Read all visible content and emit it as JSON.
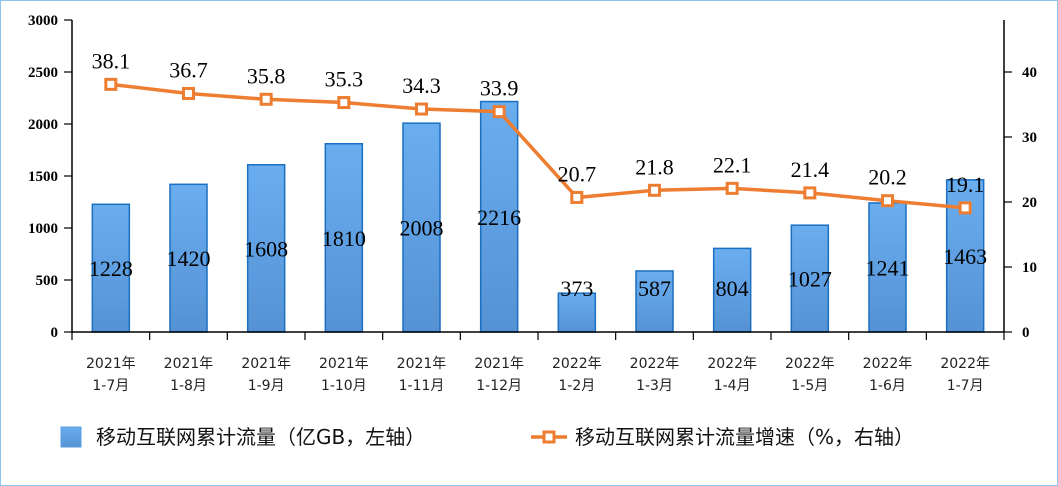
{
  "chart_data": {
    "type": "bar+line",
    "categories": [
      [
        "2021年",
        "1-7月"
      ],
      [
        "2021年",
        "1-8月"
      ],
      [
        "2021年",
        "1-9月"
      ],
      [
        "2021年",
        "1-10月"
      ],
      [
        "2021年",
        "1-11月"
      ],
      [
        "2021年",
        "1-12月"
      ],
      [
        "2022年",
        "1-2月"
      ],
      [
        "2022年",
        "1-3月"
      ],
      [
        "2022年",
        "1-4月"
      ],
      [
        "2022年",
        "1-5月"
      ],
      [
        "2022年",
        "1-6月"
      ],
      [
        "2022年",
        "1-7月"
      ]
    ],
    "series": [
      {
        "name": "移动互联网累计流量（亿GB，左轴）",
        "type": "bar",
        "axis": "left",
        "color": "#5b9ee0",
        "values": [
          1228,
          1420,
          1608,
          1810,
          2008,
          2216,
          373,
          587,
          804,
          1027,
          1241,
          1463
        ]
      },
      {
        "name": "移动互联网累计流量增速（%，右轴）",
        "type": "line",
        "axis": "right",
        "color": "#ed7d31",
        "values": [
          38.1,
          36.7,
          35.8,
          35.3,
          34.3,
          33.9,
          20.7,
          21.8,
          22.1,
          21.4,
          20.2,
          19.1
        ]
      }
    ],
    "left_axis": {
      "range": [
        0,
        3000
      ],
      "ticks": [
        0,
        500,
        1000,
        1500,
        2000,
        2500,
        3000
      ]
    },
    "right_axis": {
      "range": [
        0,
        48
      ],
      "ticks": [
        0,
        10,
        20,
        30,
        40
      ]
    },
    "grid": false,
    "legend_placement": "bottom"
  }
}
